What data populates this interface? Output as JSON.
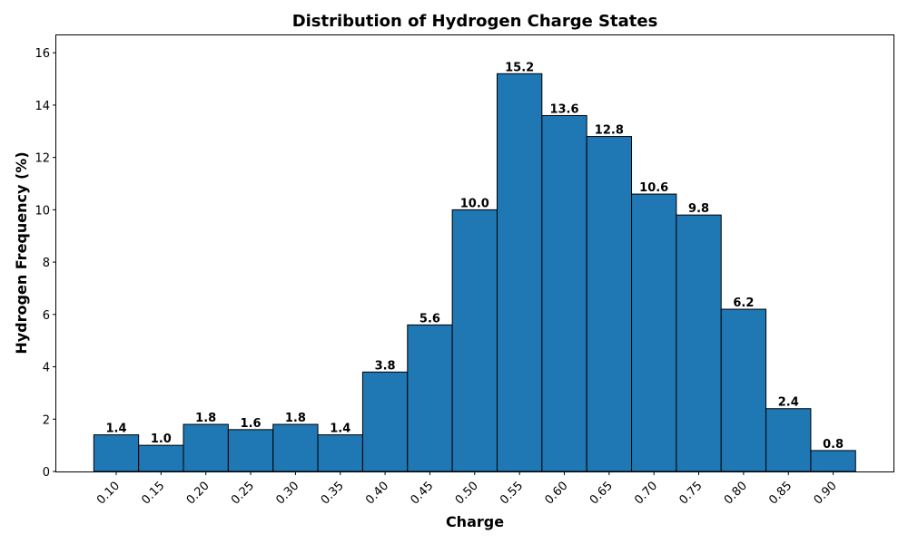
{
  "chart_data": {
    "type": "bar",
    "title": "Distribution of Hydrogen Charge States",
    "xlabel": "Charge",
    "ylabel": "Hydrogen Frequency (%)",
    "categories": [
      "0.10",
      "0.15",
      "0.20",
      "0.25",
      "0.30",
      "0.35",
      "0.40",
      "0.45",
      "0.50",
      "0.55",
      "0.60",
      "0.65",
      "0.70",
      "0.75",
      "0.80",
      "0.85",
      "0.90"
    ],
    "values": [
      1.4,
      1.0,
      1.8,
      1.6,
      1.8,
      1.4,
      3.8,
      5.6,
      10.0,
      15.2,
      13.6,
      12.8,
      10.6,
      9.8,
      6.2,
      2.4,
      0.8
    ],
    "data_labels": [
      "1.4",
      "1.0",
      "1.8",
      "1.6",
      "1.8",
      "1.4",
      "3.8",
      "5.6",
      "10.0",
      "15.2",
      "13.6",
      "12.8",
      "10.6",
      "9.8",
      "6.2",
      "2.4",
      "0.8"
    ],
    "yticks": [
      0,
      2,
      4,
      6,
      8,
      10,
      12,
      14,
      16
    ],
    "ylim": [
      0,
      16.7
    ],
    "grid": false,
    "legend": "none",
    "colors": {
      "bar_fill": "#1f77b4",
      "bar_edge": "#000000"
    }
  }
}
